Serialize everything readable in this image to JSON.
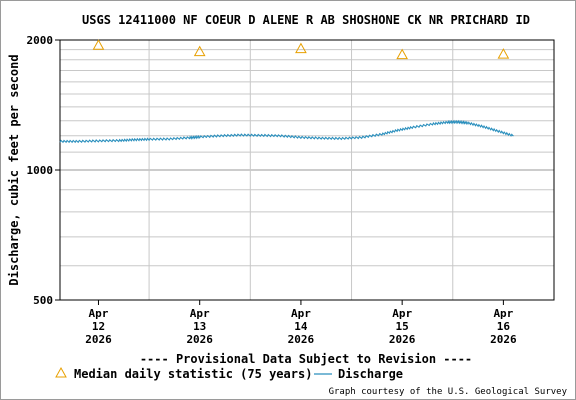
{
  "chart_data": {
    "type": "line",
    "title": "USGS 12411000 NF COEUR D ALENE R AB SHOSHONE CK NR PRICHARD ID",
    "ylabel": "Discharge, cubic feet per second",
    "y_scale": "log",
    "ylim": [
      500,
      2000
    ],
    "y_ticks": [
      {
        "value": 500,
        "label": "500"
      },
      {
        "value": 1000,
        "label": "1000"
      },
      {
        "value": 2000,
        "label": "2000"
      }
    ],
    "xlim": [
      11.62,
      16.5
    ],
    "x_ticks": [
      {
        "value": 12,
        "month": "Apr",
        "day": "12",
        "year": "2026"
      },
      {
        "value": 13,
        "month": "Apr",
        "day": "13",
        "year": "2026"
      },
      {
        "value": 14,
        "month": "Apr",
        "day": "14",
        "year": "2026"
      },
      {
        "value": 15,
        "month": "Apr",
        "day": "15",
        "year": "2026"
      },
      {
        "value": 16,
        "month": "Apr",
        "day": "16",
        "year": "2026"
      }
    ],
    "grid": true,
    "series": [
      {
        "name": "Discharge",
        "color": "#2a8fbd",
        "x": [
          11.62,
          11.8,
          12.0,
          12.2,
          12.35,
          12.5,
          12.7,
          12.9,
          13.0,
          13.2,
          13.4,
          13.6,
          13.8,
          14.0,
          14.2,
          14.4,
          14.6,
          14.8,
          14.95,
          15.1,
          15.3,
          15.45,
          15.55,
          15.65,
          15.8,
          15.95,
          16.1
        ],
        "y": [
          1165,
          1165,
          1168,
          1170,
          1175,
          1178,
          1180,
          1188,
          1193,
          1200,
          1205,
          1203,
          1200,
          1190,
          1185,
          1183,
          1190,
          1210,
          1235,
          1255,
          1278,
          1290,
          1292,
          1285,
          1260,
          1230,
          1200
        ]
      },
      {
        "name": "Median daily statistic (75 years)",
        "marker": "triangle",
        "color": "#e8a000",
        "x": [
          12.0,
          13.0,
          14.0,
          15.0,
          16.0
        ],
        "y": [
          1945,
          1880,
          1910,
          1850,
          1855
        ]
      }
    ],
    "annotation": "---- Provisional Data Subject to Revision ----",
    "legend_position": "bottom-left",
    "credit": "Graph courtesy of the U.S. Geological Survey"
  },
  "colors": {
    "annotation": "#cc0000",
    "grid": "#c8c8c8",
    "axis": "#000000"
  }
}
